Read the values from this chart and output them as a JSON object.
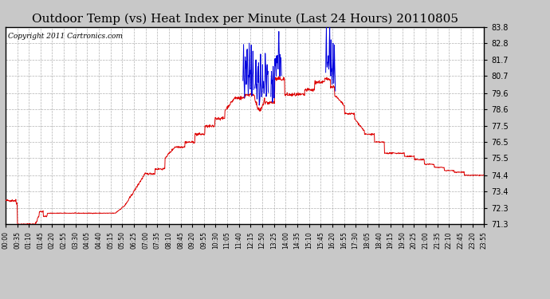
{
  "title": "Outdoor Temp (vs) Heat Index per Minute (Last 24 Hours) 20110805",
  "copyright": "Copyright 2011 Cartronics.com",
  "yticks": [
    83.8,
    82.8,
    81.7,
    80.7,
    79.6,
    78.6,
    77.5,
    76.5,
    75.5,
    74.4,
    73.4,
    72.3,
    71.3
  ],
  "ymin": 71.3,
  "ymax": 83.8,
  "xtick_labels": [
    "00:00",
    "00:35",
    "01:10",
    "01:45",
    "02:20",
    "02:55",
    "03:30",
    "04:05",
    "04:40",
    "05:15",
    "05:50",
    "06:25",
    "07:00",
    "07:35",
    "08:10",
    "08:45",
    "09:20",
    "09:55",
    "10:30",
    "11:05",
    "11:40",
    "12:15",
    "12:50",
    "13:25",
    "14:00",
    "14:35",
    "15:10",
    "15:45",
    "16:20",
    "16:55",
    "17:30",
    "18:05",
    "18:40",
    "19:15",
    "19:50",
    "20:25",
    "21:00",
    "21:35",
    "22:10",
    "22:45",
    "23:20",
    "23:55"
  ],
  "fig_bg": "#c8c8c8",
  "plot_bg": "#ffffff",
  "grid_color": "#aaaaaa",
  "red_color": "#dd0000",
  "blue_color": "#0000dd",
  "title_fontsize": 11,
  "copyright_fontsize": 6.5
}
